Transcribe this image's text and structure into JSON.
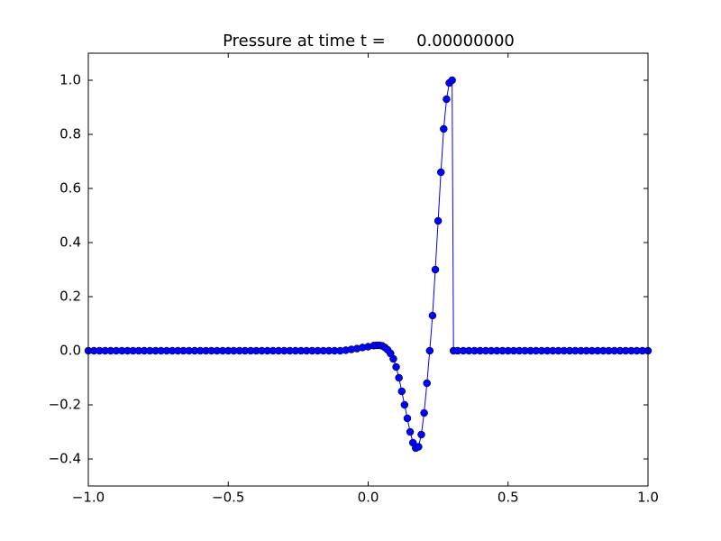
{
  "chart_data": {
    "type": "line",
    "title": "Pressure at time t =      0.00000000",
    "x": [
      -1.0,
      -0.98,
      -0.96,
      -0.94,
      -0.92,
      -0.9,
      -0.88,
      -0.86,
      -0.84,
      -0.82,
      -0.8,
      -0.78,
      -0.76,
      -0.74,
      -0.72,
      -0.7,
      -0.68,
      -0.66,
      -0.64,
      -0.62,
      -0.6,
      -0.58,
      -0.56,
      -0.54,
      -0.52,
      -0.5,
      -0.48,
      -0.46,
      -0.44,
      -0.42,
      -0.4,
      -0.38,
      -0.36,
      -0.34,
      -0.32,
      -0.3,
      -0.28,
      -0.26,
      -0.24,
      -0.22,
      -0.2,
      -0.18,
      -0.16,
      -0.14,
      -0.12,
      -0.1,
      -0.08,
      -0.06,
      -0.04,
      -0.02,
      0.0,
      0.02,
      0.03,
      0.04,
      0.05,
      0.06,
      0.07,
      0.08,
      0.09,
      0.1,
      0.11,
      0.12,
      0.13,
      0.14,
      0.15,
      0.16,
      0.17,
      0.18,
      0.19,
      0.2,
      0.21,
      0.22,
      0.23,
      0.24,
      0.25,
      0.26,
      0.27,
      0.28,
      0.29,
      0.3,
      0.305,
      0.32,
      0.34,
      0.36,
      0.38,
      0.4,
      0.42,
      0.44,
      0.46,
      0.48,
      0.5,
      0.52,
      0.54,
      0.56,
      0.58,
      0.6,
      0.62,
      0.64,
      0.66,
      0.68,
      0.7,
      0.72,
      0.74,
      0.76,
      0.78,
      0.8,
      0.82,
      0.84,
      0.86,
      0.88,
      0.9,
      0.92,
      0.94,
      0.96,
      0.98,
      1.0
    ],
    "series": [
      {
        "color": "#0000ff",
        "values": [
          0,
          0,
          0,
          0,
          0,
          0,
          0,
          0,
          0,
          0,
          0,
          0,
          0,
          0,
          0,
          0,
          0,
          0,
          0,
          0,
          0,
          0,
          0,
          0,
          0,
          0,
          0,
          0,
          0,
          0,
          0,
          0,
          0,
          0,
          0,
          0,
          0,
          0,
          0,
          0,
          0,
          0,
          0,
          0,
          0,
          0,
          0.002,
          0.005,
          0.008,
          0.012,
          0.015,
          0.019,
          0.02,
          0.02,
          0.018,
          0.012,
          0.003,
          -0.01,
          -0.03,
          -0.06,
          -0.1,
          -0.15,
          -0.2,
          -0.25,
          -0.3,
          -0.34,
          -0.36,
          -0.355,
          -0.31,
          -0.23,
          -0.12,
          0.0,
          0.13,
          0.3,
          0.48,
          0.66,
          0.82,
          0.93,
          0.99,
          1.0,
          0,
          0,
          0,
          0,
          0,
          0,
          0,
          0,
          0,
          0,
          0,
          0,
          0,
          0,
          0,
          0,
          0,
          0,
          0,
          0,
          0,
          0,
          0,
          0,
          0,
          0,
          0,
          0,
          0,
          0,
          0,
          0,
          0,
          0,
          0,
          0
        ]
      }
    ],
    "xlim": [
      -1.0,
      1.0
    ],
    "xticks": [
      {
        "value": -1.0,
        "label": "−1.0"
      },
      {
        "value": -0.5,
        "label": "−0.5"
      },
      {
        "value": 0.0,
        "label": "0.0"
      },
      {
        "value": 0.5,
        "label": "0.5"
      },
      {
        "value": 1.0,
        "label": "1.0"
      }
    ],
    "ylim": [
      -0.5,
      1.1
    ],
    "yticks": [
      {
        "value": -0.4,
        "label": "−0.4"
      },
      {
        "value": -0.2,
        "label": "−0.2"
      },
      {
        "value": 0.0,
        "label": "0.0"
      },
      {
        "value": 0.2,
        "label": "0.2"
      },
      {
        "value": 0.4,
        "label": "0.4"
      },
      {
        "value": 0.6,
        "label": "0.6"
      },
      {
        "value": 0.8,
        "label": "0.8"
      },
      {
        "value": 1.0,
        "label": "1.0"
      }
    ],
    "grid": false
  }
}
